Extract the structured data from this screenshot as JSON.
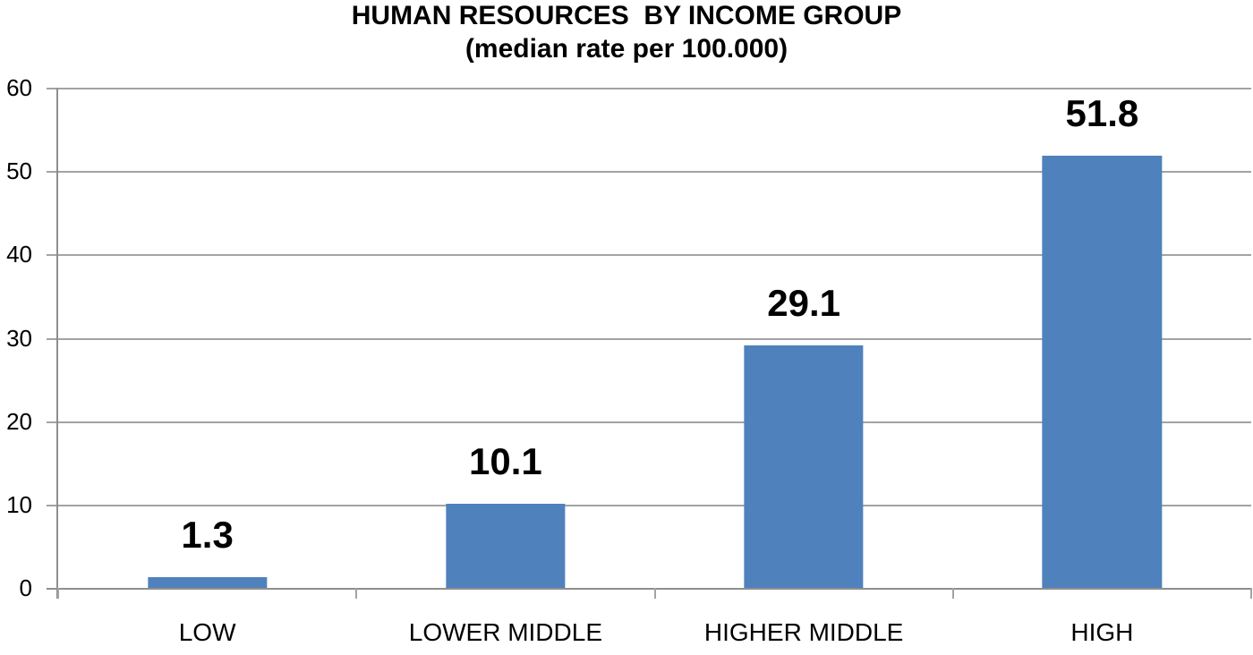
{
  "chart_data": {
    "type": "bar",
    "title": "HUMAN RESOURCES  BY INCOME GROUP",
    "subtitle": "(median rate per 100.000)",
    "categories": [
      "LOW",
      "LOWER MIDDLE",
      "HIGHER MIDDLE",
      "HIGH"
    ],
    "values": [
      1.3,
      10.1,
      29.1,
      51.8
    ],
    "data_labels": [
      "1.3",
      "10.1",
      "29.1",
      "51.8"
    ],
    "series_name": "median rate per 100.000",
    "xlabel": "",
    "ylabel": "",
    "ylim": [
      0,
      60
    ],
    "yticks": [
      0,
      10,
      20,
      30,
      40,
      50,
      60
    ],
    "grid": "horizontal",
    "legend": "none",
    "colors": {
      "bar": "#4f81bd",
      "gridline": "#a3a3a3",
      "axis": "#8e8e8e",
      "text": "#000000",
      "background": "#ffffff"
    }
  }
}
